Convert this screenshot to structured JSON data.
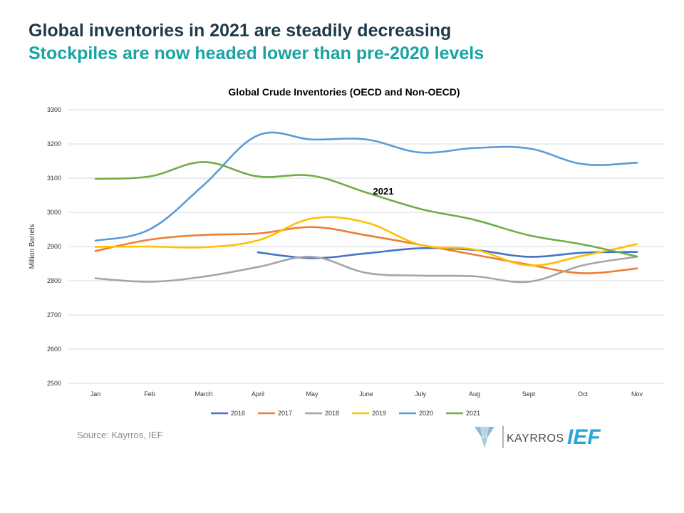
{
  "header": {
    "title": "Global inventories in 2021 are steadily decreasing",
    "subtitle": "Stockpiles are now headed lower than pre-2020 levels"
  },
  "chart_data": {
    "type": "line",
    "title": "Global Crude Inventories (OECD and Non-OECD)",
    "xlabel": "",
    "ylabel": "Million Barrels",
    "ylim": [
      2500,
      3300
    ],
    "yticks": [
      2500,
      2600,
      2700,
      2800,
      2900,
      3000,
      3100,
      3200,
      3300
    ],
    "grid": true,
    "legend": "bottom",
    "categories": [
      "Jan",
      "Feb",
      "March",
      "April",
      "May",
      "June",
      "July",
      "Aug",
      "Sept",
      "Oct",
      "Nov"
    ],
    "annotation": {
      "text": "2021"
    },
    "series": [
      {
        "name": "2016",
        "color": "#4472c4",
        "values": [
          null,
          null,
          null,
          2883,
          2866,
          2880,
          2895,
          2890,
          2870,
          2882,
          2884
        ]
      },
      {
        "name": "2017",
        "color": "#ed7d31",
        "values": [
          2887,
          2920,
          2934,
          2938,
          2957,
          2933,
          2905,
          2876,
          2847,
          2822,
          2836
        ]
      },
      {
        "name": "2018",
        "color": "#a5a5a5",
        "values": [
          2807,
          2797,
          2812,
          2840,
          2870,
          2823,
          2815,
          2813,
          2797,
          2845,
          2870
        ]
      },
      {
        "name": "2019",
        "color": "#ffc000",
        "values": [
          2899,
          2900,
          2898,
          2918,
          2982,
          2970,
          2905,
          2891,
          2845,
          2873,
          2907
        ]
      },
      {
        "name": "2020",
        "color": "#5b9bd5",
        "values": [
          2917,
          2950,
          3080,
          3225,
          3213,
          3213,
          3175,
          3188,
          3187,
          3141,
          3145
        ]
      },
      {
        "name": "2021",
        "color": "#70ad47",
        "values": [
          3098,
          3105,
          3147,
          3105,
          3107,
          3058,
          3010,
          2978,
          2933,
          2906,
          2871
        ]
      }
    ]
  },
  "source_text": "Source: Kayrros, IEF",
  "logos": {
    "kayrros": "KAYRROS",
    "ief": "IEF"
  }
}
